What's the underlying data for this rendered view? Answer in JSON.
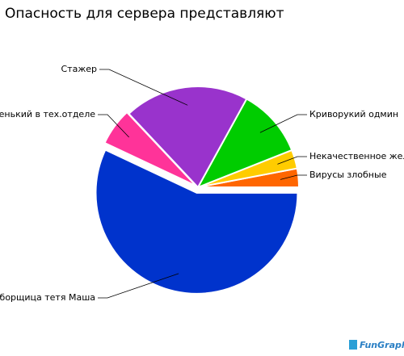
{
  "chart_data": {
    "type": "pie",
    "title": "Опасность для сервера представляют",
    "categories": [
      "Вирусы злобные",
      "Некачественное железо",
      "Криворукий одмин",
      "Стажер",
      "Новенький в тех.отделе",
      "Уборщица тетя Маша"
    ],
    "values": [
      3,
      3,
      11,
      20,
      6,
      57
    ],
    "colors": [
      "#ff6600",
      "#ffcc00",
      "#00cc00",
      "#9933cc",
      "#ff3399",
      "#0033cc"
    ],
    "logo": "FunGraph"
  }
}
